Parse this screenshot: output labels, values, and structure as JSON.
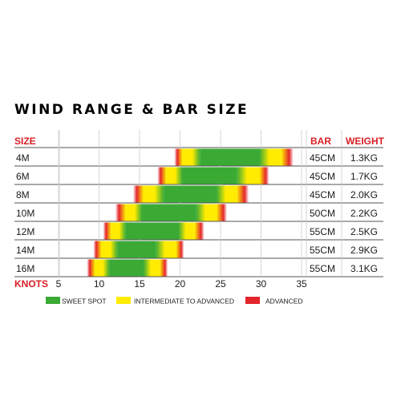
{
  "title": "WIND RANGE & BAR SIZE",
  "headers": {
    "size": "SIZE",
    "bar": "BAR",
    "weight": "WEIGHT",
    "knots": "KNOTS"
  },
  "colors": {
    "text": "#1a1a1a",
    "header_red": "#d81f26",
    "sweet_spot": "#3aaa35",
    "intermediate": "#ffec00",
    "advanced": "#e3262b",
    "grid": "#cccccc"
  },
  "chart_data": {
    "type": "range-bar",
    "title": "WIND RANGE & BAR SIZE",
    "xlabel": "KNOTS",
    "xlim": [
      5,
      35
    ],
    "x_ticks": [
      5,
      10,
      15,
      20,
      25,
      30,
      35
    ],
    "legend": {
      "position": "bottom",
      "entries": [
        {
          "key": "sweet_spot",
          "label": "SWEET SPOT"
        },
        {
          "key": "intermediate",
          "label": "INTERMEDIATE TO ADVANCED"
        },
        {
          "key": "advanced",
          "label": "ADVANCED"
        }
      ]
    },
    "rows": [
      {
        "size": "4M",
        "bar": "45CM",
        "weight": "1.3KG",
        "advanced_low": 19.3,
        "intermediate_low": 20.3,
        "sweet_low": 22.5,
        "sweet_high": 29.8,
        "intermediate_high": 32.5,
        "advanced_high": 34.0
      },
      {
        "size": "6M",
        "bar": "45CM",
        "weight": "1.7KG",
        "advanced_low": 17.2,
        "intermediate_low": 18.3,
        "sweet_low": 20.3,
        "sweet_high": 27.0,
        "intermediate_high": 29.8,
        "advanced_high": 31.0
      },
      {
        "size": "8M",
        "bar": "45CM",
        "weight": "2.0KG",
        "advanced_low": 14.2,
        "intermediate_low": 15.5,
        "sweet_low": 18.0,
        "sweet_high": 24.5,
        "intermediate_high": 27.0,
        "advanced_high": 28.5
      },
      {
        "size": "10M",
        "bar": "50CM",
        "weight": "2.2KG",
        "advanced_low": 12.0,
        "intermediate_low": 13.3,
        "sweet_low": 15.3,
        "sweet_high": 22.0,
        "intermediate_high": 24.5,
        "advanced_high": 25.8
      },
      {
        "size": "12M",
        "bar": "55CM",
        "weight": "2.5KG",
        "advanced_low": 10.5,
        "intermediate_low": 11.5,
        "sweet_low": 13.3,
        "sweet_high": 19.8,
        "intermediate_high": 21.8,
        "advanced_high": 23.0
      },
      {
        "size": "14M",
        "bar": "55CM",
        "weight": "2.9KG",
        "advanced_low": 9.3,
        "intermediate_low": 10.3,
        "sweet_low": 12.3,
        "sweet_high": 17.0,
        "intermediate_high": 19.5,
        "advanced_high": 20.5
      },
      {
        "size": "16M",
        "bar": "55CM",
        "weight": "3.1KG",
        "advanced_low": 8.5,
        "intermediate_low": 9.5,
        "sweet_low": 11.3,
        "sweet_high": 15.5,
        "intermediate_high": 17.5,
        "advanced_high": 18.5
      }
    ]
  }
}
